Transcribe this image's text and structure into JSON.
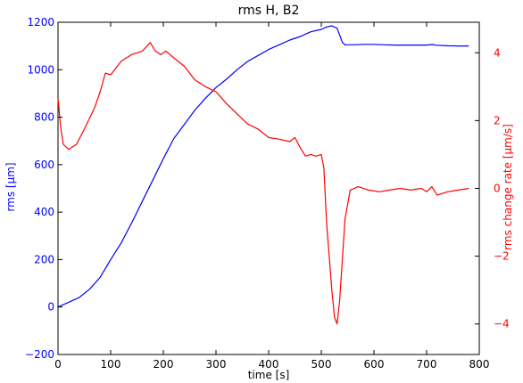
{
  "chart_data": {
    "type": "line",
    "title": "rms H, B2",
    "xlabel": "time [s]",
    "ylabel_left": "rms [μm]",
    "ylabel_right": "rms change rate [μm/s]",
    "xlim": [
      0,
      800
    ],
    "ylim_left": [
      -200,
      1200
    ],
    "ylim_right": [
      -4.9,
      4.9
    ],
    "xticks": [
      0,
      100,
      200,
      300,
      400,
      500,
      600,
      700,
      800
    ],
    "yticks_left": [
      -200,
      0,
      200,
      400,
      600,
      800,
      1000,
      1200
    ],
    "yticks_right": [
      -4,
      -2,
      0,
      2,
      4
    ],
    "grid": false,
    "colors": {
      "rms": "#0000ff",
      "rate": "#ff0000",
      "axis_left": "#0000ff",
      "axis_right": "#ff0000"
    },
    "series": [
      {
        "axis": "left",
        "color": "#0000ff",
        "points": [
          [
            0,
            0
          ],
          [
            20,
            20
          ],
          [
            40,
            40
          ],
          [
            60,
            75
          ],
          [
            80,
            125
          ],
          [
            100,
            200
          ],
          [
            120,
            270
          ],
          [
            140,
            355
          ],
          [
            160,
            445
          ],
          [
            180,
            535
          ],
          [
            200,
            625
          ],
          [
            220,
            710
          ],
          [
            240,
            770
          ],
          [
            260,
            830
          ],
          [
            280,
            880
          ],
          [
            300,
            925
          ],
          [
            320,
            960
          ],
          [
            340,
            1000
          ],
          [
            360,
            1035
          ],
          [
            380,
            1060
          ],
          [
            400,
            1085
          ],
          [
            420,
            1105
          ],
          [
            440,
            1125
          ],
          [
            460,
            1140
          ],
          [
            480,
            1160
          ],
          [
            500,
            1170
          ],
          [
            510,
            1180
          ],
          [
            520,
            1185
          ],
          [
            530,
            1175
          ],
          [
            540,
            1115
          ],
          [
            545,
            1105
          ],
          [
            560,
            1105
          ],
          [
            580,
            1107
          ],
          [
            600,
            1107
          ],
          [
            620,
            1105
          ],
          [
            640,
            1104
          ],
          [
            660,
            1104
          ],
          [
            680,
            1104
          ],
          [
            700,
            1104
          ],
          [
            710,
            1106
          ],
          [
            720,
            1103
          ],
          [
            740,
            1101
          ],
          [
            760,
            1100
          ],
          [
            780,
            1100
          ]
        ]
      },
      {
        "axis": "right",
        "color": "#ff0000",
        "points": [
          [
            0,
            2.65
          ],
          [
            5,
            1.8
          ],
          [
            10,
            1.3
          ],
          [
            20,
            1.15
          ],
          [
            35,
            1.3
          ],
          [
            50,
            1.75
          ],
          [
            70,
            2.4
          ],
          [
            80,
            2.85
          ],
          [
            90,
            3.4
          ],
          [
            100,
            3.35
          ],
          [
            110,
            3.55
          ],
          [
            120,
            3.75
          ],
          [
            140,
            3.95
          ],
          [
            160,
            4.05
          ],
          [
            175,
            4.3
          ],
          [
            185,
            4.05
          ],
          [
            195,
            3.95
          ],
          [
            205,
            4.05
          ],
          [
            220,
            3.85
          ],
          [
            240,
            3.6
          ],
          [
            260,
            3.2
          ],
          [
            280,
            3.0
          ],
          [
            300,
            2.85
          ],
          [
            320,
            2.5
          ],
          [
            340,
            2.2
          ],
          [
            360,
            1.9
          ],
          [
            380,
            1.75
          ],
          [
            400,
            1.5
          ],
          [
            420,
            1.45
          ],
          [
            440,
            1.38
          ],
          [
            450,
            1.5
          ],
          [
            460,
            1.2
          ],
          [
            470,
            0.95
          ],
          [
            480,
            1.0
          ],
          [
            490,
            0.95
          ],
          [
            500,
            1.0
          ],
          [
            505,
            0.6
          ],
          [
            510,
            -1.0
          ],
          [
            520,
            -3.0
          ],
          [
            525,
            -3.8
          ],
          [
            530,
            -4.0
          ],
          [
            535,
            -3.3
          ],
          [
            545,
            -0.9
          ],
          [
            555,
            -0.05
          ],
          [
            570,
            0.05
          ],
          [
            590,
            -0.05
          ],
          [
            610,
            -0.1
          ],
          [
            630,
            -0.05
          ],
          [
            650,
            0
          ],
          [
            670,
            -0.05
          ],
          [
            690,
            0
          ],
          [
            700,
            -0.1
          ],
          [
            710,
            0.05
          ],
          [
            720,
            -0.2
          ],
          [
            740,
            -0.1
          ],
          [
            760,
            -0.05
          ],
          [
            780,
            0.0
          ]
        ]
      }
    ]
  }
}
